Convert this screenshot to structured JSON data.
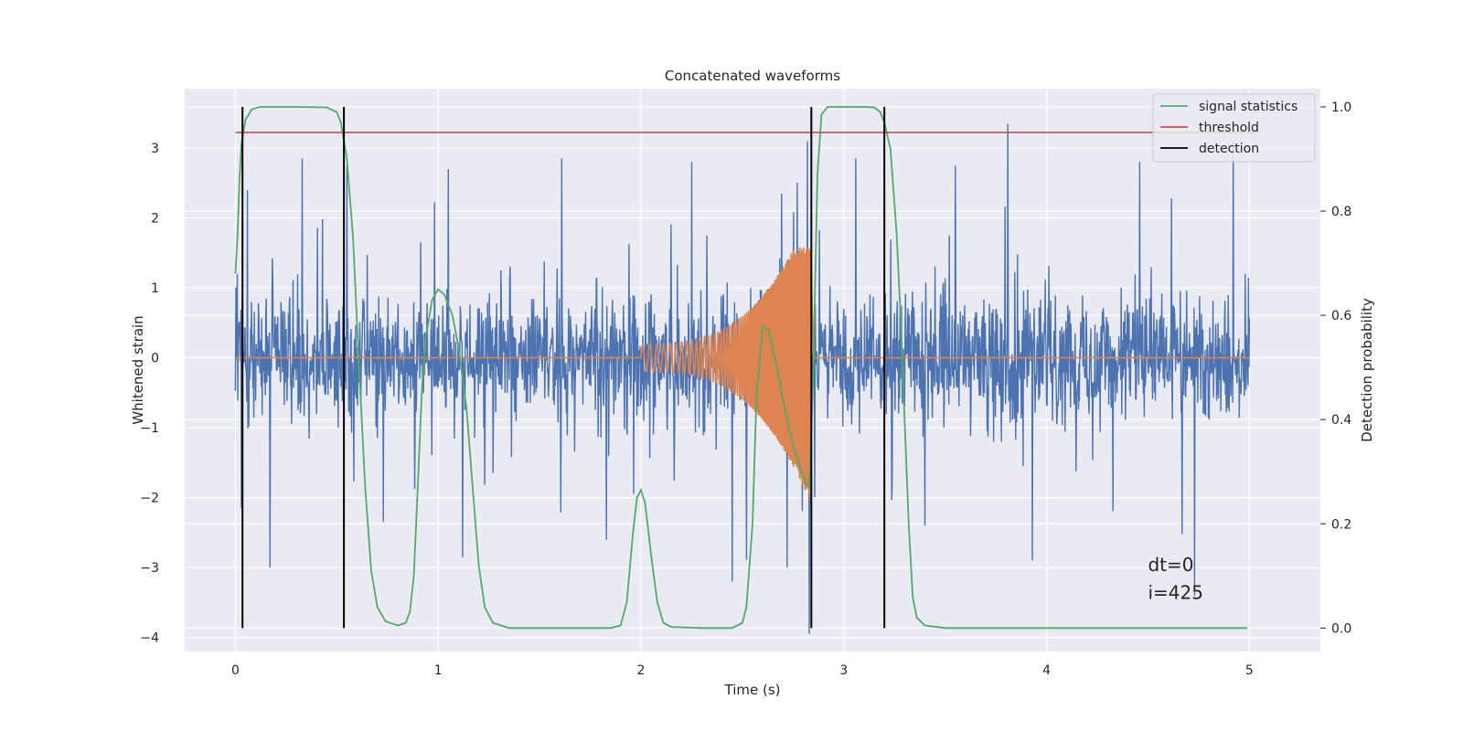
{
  "chart_data": {
    "type": "line",
    "title": "Concatenated waveforms",
    "xlabel": "Time (s)",
    "ylabel": "Whitened strain",
    "y2label": "Detection probability",
    "xlim": [
      -0.25,
      5.35
    ],
    "ylim": [
      -4.2,
      3.85
    ],
    "y2lim": [
      -0.045,
      1.035
    ],
    "xticks": [
      0,
      1,
      2,
      3,
      4,
      5
    ],
    "yticks": [
      -4,
      -3,
      -2,
      -1,
      0,
      1,
      2,
      3
    ],
    "y2ticks": [
      0.0,
      0.2,
      0.4,
      0.6,
      0.8,
      1.0
    ],
    "grid": true,
    "legend_position": "top-right",
    "series": [
      {
        "name": "",
        "axis": "left",
        "color": "#4c72b0",
        "kind": "noise",
        "x_range": [
          0,
          5
        ],
        "envelope": [
          -3.4,
          3.4
        ],
        "peaks": [
          {
            "x": 0.01,
            "y": 1.2
          },
          {
            "x": 0.03,
            "y": -2.15
          },
          {
            "x": 0.06,
            "y": 2.4
          },
          {
            "x": 0.17,
            "y": -3.0
          },
          {
            "x": 0.33,
            "y": 2.85
          },
          {
            "x": 0.55,
            "y": 2.75
          },
          {
            "x": 0.73,
            "y": -2.35
          },
          {
            "x": 1.05,
            "y": 2.7
          },
          {
            "x": 1.12,
            "y": -2.85
          },
          {
            "x": 1.61,
            "y": 2.85
          },
          {
            "x": 1.83,
            "y": -2.6
          },
          {
            "x": 2.25,
            "y": 2.8
          },
          {
            "x": 2.45,
            "y": -3.2
          },
          {
            "x": 2.72,
            "y": -3.0
          },
          {
            "x": 2.77,
            "y": 2.5
          },
          {
            "x": 2.82,
            "y": 3.1
          },
          {
            "x": 2.83,
            "y": -3.95
          },
          {
            "x": 3.06,
            "y": 2.85
          },
          {
            "x": 3.4,
            "y": -2.4
          },
          {
            "x": 3.55,
            "y": 2.75
          },
          {
            "x": 3.81,
            "y": 3.35
          },
          {
            "x": 3.93,
            "y": -2.9
          },
          {
            "x": 4.46,
            "y": 2.8
          },
          {
            "x": 4.73,
            "y": -3.4
          },
          {
            "x": 4.92,
            "y": 3.1
          },
          {
            "x": 4.98,
            "y": 1.2
          }
        ]
      },
      {
        "name": "",
        "axis": "left",
        "color": "#dd8452",
        "kind": "chirp",
        "x_range": [
          0,
          5
        ],
        "chirp_start": 2.0,
        "chirp_end": 2.84,
        "amp_start": 0.2,
        "amp_peak": 1.58,
        "amp_trough": -2.1
      },
      {
        "name": "signal statistics",
        "axis": "right",
        "color": "#55a868",
        "points": [
          [
            0.0,
            0.68
          ],
          [
            0.01,
            0.75
          ],
          [
            0.02,
            0.86
          ],
          [
            0.03,
            0.93
          ],
          [
            0.05,
            0.975
          ],
          [
            0.08,
            0.995
          ],
          [
            0.12,
            1.0
          ],
          [
            0.3,
            1.0
          ],
          [
            0.45,
            0.999
          ],
          [
            0.5,
            0.99
          ],
          [
            0.52,
            0.97
          ],
          [
            0.55,
            0.9
          ],
          [
            0.58,
            0.75
          ],
          [
            0.61,
            0.5
          ],
          [
            0.64,
            0.27
          ],
          [
            0.67,
            0.11
          ],
          [
            0.7,
            0.04
          ],
          [
            0.74,
            0.013
          ],
          [
            0.8,
            0.005
          ],
          [
            0.84,
            0.01
          ],
          [
            0.86,
            0.03
          ],
          [
            0.88,
            0.1
          ],
          [
            0.9,
            0.28
          ],
          [
            0.92,
            0.46
          ],
          [
            0.94,
            0.56
          ],
          [
            0.97,
            0.63
          ],
          [
            1.0,
            0.65
          ],
          [
            1.03,
            0.64
          ],
          [
            1.07,
            0.6
          ],
          [
            1.1,
            0.54
          ],
          [
            1.14,
            0.42
          ],
          [
            1.17,
            0.27
          ],
          [
            1.2,
            0.12
          ],
          [
            1.23,
            0.04
          ],
          [
            1.27,
            0.01
          ],
          [
            1.35,
            0.0
          ],
          [
            1.5,
            0.0
          ],
          [
            1.7,
            0.0
          ],
          [
            1.85,
            0.0
          ],
          [
            1.9,
            0.005
          ],
          [
            1.93,
            0.05
          ],
          [
            1.96,
            0.18
          ],
          [
            1.98,
            0.25
          ],
          [
            2.0,
            0.265
          ],
          [
            2.02,
            0.24
          ],
          [
            2.05,
            0.14
          ],
          [
            2.08,
            0.05
          ],
          [
            2.11,
            0.01
          ],
          [
            2.15,
            0.002
          ],
          [
            2.3,
            0.0
          ],
          [
            2.45,
            0.0
          ],
          [
            2.5,
            0.01
          ],
          [
            2.52,
            0.04
          ],
          [
            2.55,
            0.2
          ],
          [
            2.57,
            0.45
          ],
          [
            2.6,
            0.58
          ],
          [
            2.63,
            0.57
          ],
          [
            2.67,
            0.5
          ],
          [
            2.71,
            0.42
          ],
          [
            2.75,
            0.35
          ],
          [
            2.79,
            0.3
          ],
          [
            2.81,
            0.28
          ],
          [
            2.83,
            0.27
          ],
          [
            2.85,
            0.5
          ],
          [
            2.87,
            0.87
          ],
          [
            2.89,
            0.985
          ],
          [
            2.92,
            1.0
          ],
          [
            3.1,
            1.0
          ],
          [
            3.15,
            0.999
          ],
          [
            3.18,
            0.99
          ],
          [
            3.2,
            0.97
          ],
          [
            3.23,
            0.92
          ],
          [
            3.26,
            0.76
          ],
          [
            3.28,
            0.6
          ],
          [
            3.3,
            0.4
          ],
          [
            3.32,
            0.2
          ],
          [
            3.34,
            0.06
          ],
          [
            3.36,
            0.02
          ],
          [
            3.4,
            0.005
          ],
          [
            3.5,
            0.0
          ],
          [
            4.5,
            0.0
          ],
          [
            4.99,
            0.0
          ]
        ]
      },
      {
        "name": "threshold",
        "axis": "right",
        "color": "#c44e52",
        "x": [
          0.0,
          5.05
        ],
        "value": 0.951
      },
      {
        "name": "detection",
        "axis": "right",
        "color": "#000000",
        "x": [
          0.035,
          0.535,
          2.84,
          3.2
        ],
        "y_range": [
          0.0,
          1.0
        ]
      }
    ],
    "annotations": [
      {
        "text": "dt=0",
        "x": 4.5,
        "y": -3.05
      },
      {
        "text": "i=425",
        "x": 4.5,
        "y": -3.45
      }
    ]
  }
}
